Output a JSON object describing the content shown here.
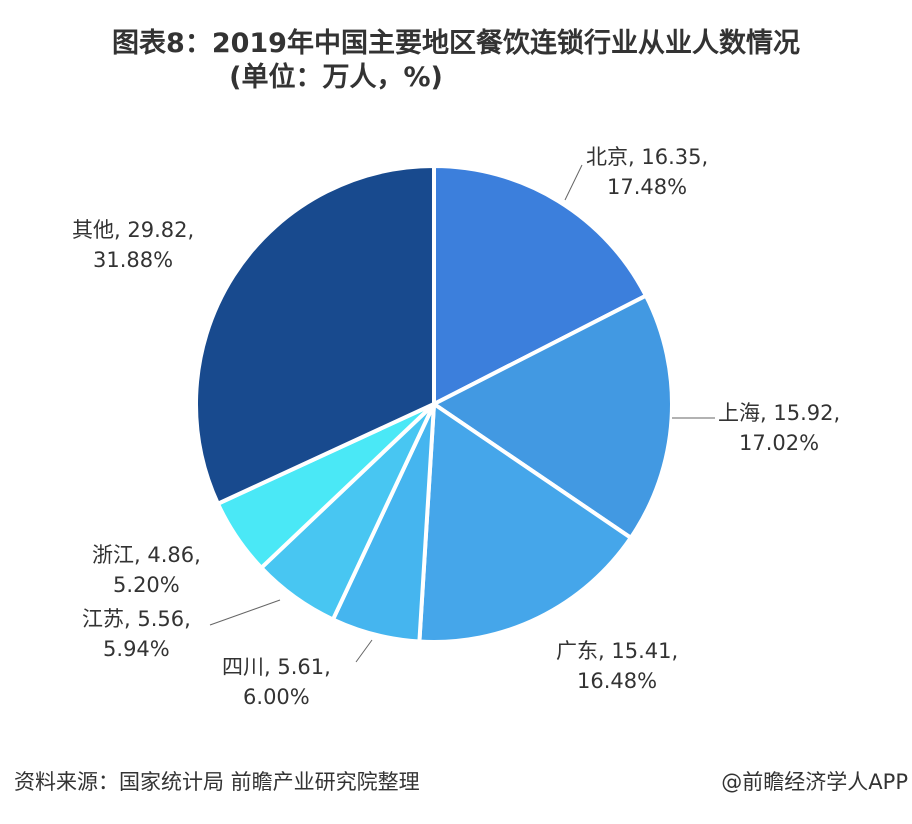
{
  "chart_data": {
    "type": "pie",
    "title": "图表8：2019年中国主要地区餐饮连锁行业从业人数情况",
    "subtitle": "(单位：万人，%)",
    "categories": [
      "北京",
      "上海",
      "广东",
      "四川",
      "江苏",
      "浙江",
      "其他"
    ],
    "values": [
      16.35,
      15.92,
      15.41,
      5.61,
      5.56,
      4.86,
      29.82
    ],
    "percentages": [
      17.48,
      17.02,
      16.48,
      6.0,
      5.94,
      5.2,
      31.88
    ],
    "labels": [
      {
        "line1": "北京, 16.35,",
        "line2": "17.48%"
      },
      {
        "line1": "上海, 15.92,",
        "line2": "17.02%"
      },
      {
        "line1": "广东, 15.41,",
        "line2": "16.48%"
      },
      {
        "line1": "四川, 5.61,",
        "line2": "6.00%"
      },
      {
        "line1": "江苏, 5.56,",
        "line2": "5.94%"
      },
      {
        "line1": "浙江, 4.86,",
        "line2": "5.20%"
      },
      {
        "line1": "其他, 29.82,",
        "line2": "31.88%"
      }
    ],
    "colors": [
      "#3c7fdc",
      "#4299e2",
      "#45a6ea",
      "#45b5ef",
      "#48c6f2",
      "#4ae8f6",
      "#184a8e"
    ],
    "start": "top",
    "direction": "clockwise"
  },
  "footer": {
    "source": "资料来源：国家统计局 前瞻产业研究院整理",
    "credit": "@前瞻经济学人APP"
  }
}
